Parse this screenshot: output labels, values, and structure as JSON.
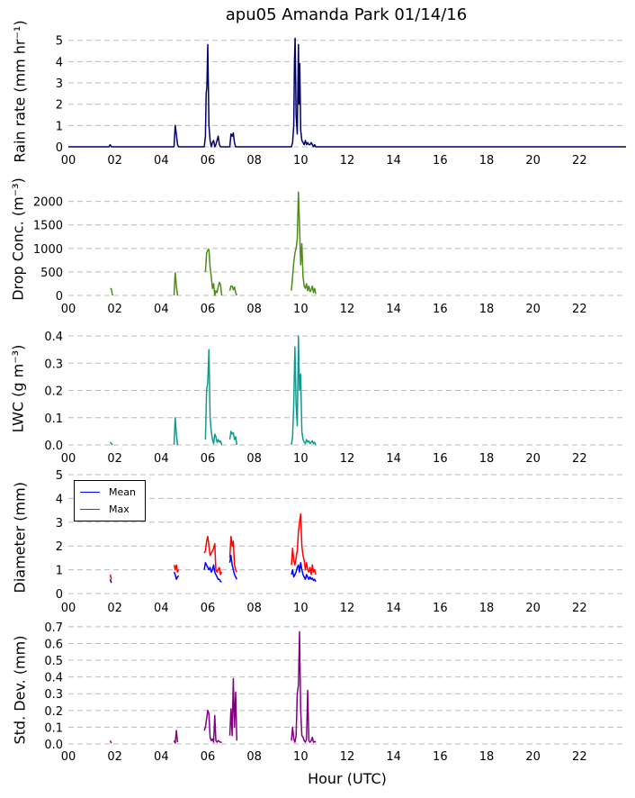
{
  "title": "apu05 Amanda Park 01/14/16",
  "xlabel": "Hour (UTC)",
  "x_tick_labels": [
    "00",
    "02",
    "04",
    "06",
    "08",
    "10",
    "12",
    "14",
    "16",
    "18",
    "20",
    "22"
  ],
  "chart_data": [
    {
      "type": "line",
      "ylabel": "Rain rate (mm hr⁻¹)",
      "xlim": [
        0,
        24
      ],
      "ylim": [
        0,
        5.2
      ],
      "y_ticks": [
        0,
        1,
        2,
        3,
        4,
        5
      ],
      "y_tick_labels": [
        "0",
        "1",
        "2",
        "3",
        "4",
        "5"
      ],
      "grid": true,
      "series": [
        {
          "color": "#000066",
          "x": [
            0,
            1.75,
            1.8,
            1.85,
            4.55,
            4.6,
            4.65,
            4.7,
            4.75,
            5.85,
            5.9,
            5.93,
            5.96,
            6.0,
            6.05,
            6.1,
            6.15,
            6.2,
            6.25,
            6.3,
            6.35,
            6.4,
            6.45,
            6.5,
            6.55,
            6.6,
            6.95,
            7.0,
            7.05,
            7.1,
            7.15,
            7.2,
            9.6,
            9.65,
            9.7,
            9.73,
            9.76,
            9.8,
            9.85,
            9.9,
            9.93,
            9.96,
            10.0,
            10.05,
            10.1,
            10.15,
            10.2,
            10.25,
            10.3,
            10.35,
            10.4,
            10.45,
            10.5,
            10.55,
            10.6,
            10.65,
            10.7,
            24
          ],
          "y": [
            0,
            0,
            0.1,
            0,
            0,
            1.0,
            0.6,
            0.1,
            0,
            0,
            0.5,
            2.5,
            2.8,
            4.8,
            1.0,
            0.3,
            0,
            0.2,
            0.3,
            0,
            0.1,
            0.3,
            0.5,
            0.1,
            0,
            0,
            0,
            0.6,
            0.5,
            0.65,
            0.2,
            0,
            0,
            0.2,
            1.0,
            4.0,
            5.1,
            1.5,
            0.6,
            4.8,
            2.0,
            3.9,
            0.8,
            0.3,
            0.2,
            0.1,
            0.3,
            0.1,
            0.2,
            0.1,
            0.1,
            0.2,
            0.1,
            0,
            0.1,
            0,
            0,
            0
          ]
        }
      ]
    },
    {
      "type": "line",
      "ylabel": "Drop Conc. (m⁻³)",
      "xlim": [
        0,
        24
      ],
      "ylim": [
        0,
        2300
      ],
      "y_ticks": [
        0,
        500,
        1000,
        1500,
        2000
      ],
      "y_tick_labels": [
        "0",
        "500",
        "1000",
        "1500",
        "2000"
      ],
      "grid": true,
      "series": [
        {
          "color": "#4d8b1a",
          "x": [
            1.8,
            1.85,
            1.9
          ],
          "y": [
            150,
            140,
            0
          ]
        },
        {
          "color": "#4d8b1a",
          "x": [
            4.55,
            4.6,
            4.65,
            4.7
          ],
          "y": [
            0,
            480,
            200,
            0
          ]
        },
        {
          "color": "#4d8b1a",
          "x": [
            5.9,
            5.95,
            6.0,
            6.05,
            6.1,
            6.15,
            6.2,
            6.25,
            6.3,
            6.35,
            6.4,
            6.45,
            6.5,
            6.55,
            6.6
          ],
          "y": [
            500,
            900,
            960,
            980,
            600,
            400,
            150,
            250,
            0,
            100,
            60,
            180,
            280,
            230,
            0
          ]
        },
        {
          "color": "#4d8b1a",
          "x": [
            6.95,
            7.0,
            7.05,
            7.1,
            7.15,
            7.2,
            7.25
          ],
          "y": [
            100,
            200,
            200,
            120,
            180,
            60,
            0
          ]
        },
        {
          "color": "#4d8b1a",
          "x": [
            9.6,
            9.65,
            9.7,
            9.75,
            9.8,
            9.85,
            9.9,
            9.95,
            10.0,
            10.05,
            10.1,
            10.15,
            10.2,
            10.25,
            10.3,
            10.35,
            10.4,
            10.45,
            10.5,
            10.55,
            10.6,
            10.65
          ],
          "y": [
            100,
            400,
            700,
            900,
            1000,
            1200,
            2200,
            1500,
            650,
            1100,
            400,
            200,
            150,
            250,
            100,
            200,
            80,
            120,
            200,
            60,
            150,
            30
          ]
        }
      ]
    },
    {
      "type": "line",
      "ylabel": "LWC (g m⁻³)",
      "xlim": [
        0,
        24
      ],
      "ylim": [
        0,
        0.41
      ],
      "y_ticks": [
        0,
        0.1,
        0.2,
        0.3,
        0.4
      ],
      "y_tick_labels": [
        "0.0",
        "0.1",
        "0.2",
        "0.3",
        "0.4"
      ],
      "grid": true,
      "series": [
        {
          "color": "#119990",
          "x": [
            1.8,
            1.85,
            1.9
          ],
          "y": [
            0.01,
            0.005,
            0
          ]
        },
        {
          "color": "#119990",
          "x": [
            4.55,
            4.6,
            4.65,
            4.7
          ],
          "y": [
            0,
            0.1,
            0.04,
            0
          ]
        },
        {
          "color": "#119990",
          "x": [
            5.9,
            5.95,
            6.0,
            6.05,
            6.1,
            6.15,
            6.2,
            6.25,
            6.3,
            6.35,
            6.4,
            6.45,
            6.5,
            6.55,
            6.6
          ],
          "y": [
            0.02,
            0.2,
            0.23,
            0.35,
            0.1,
            0.05,
            0.02,
            0.005,
            0.04,
            0.03,
            0.01,
            0.02,
            0.01,
            0.015,
            0
          ]
        },
        {
          "color": "#119990",
          "x": [
            6.95,
            7.0,
            7.05,
            7.1,
            7.15,
            7.2,
            7.25
          ],
          "y": [
            0.02,
            0.05,
            0.04,
            0.045,
            0.02,
            0.03,
            0
          ]
        },
        {
          "color": "#119990",
          "x": [
            9.6,
            9.65,
            9.7,
            9.75,
            9.8,
            9.85,
            9.9,
            9.95,
            10.0,
            10.05,
            10.1,
            10.15,
            10.2,
            10.25,
            10.3,
            10.35,
            10.4,
            10.45,
            10.5,
            10.55,
            10.6,
            10.65
          ],
          "y": [
            0,
            0.03,
            0.15,
            0.36,
            0.15,
            0.07,
            0.4,
            0.2,
            0.26,
            0.05,
            0.02,
            0.01,
            0.005,
            0.02,
            0.01,
            0.015,
            0.005,
            0.01,
            0.015,
            0.005,
            0.01,
            0
          ]
        }
      ]
    },
    {
      "type": "line",
      "ylabel": "Diameter (mm)",
      "xlim": [
        0,
        24
      ],
      "ylim": [
        0,
        5
      ],
      "y_ticks": [
        0,
        1,
        2,
        3,
        4,
        5
      ],
      "y_tick_labels": [
        "0",
        "1",
        "2",
        "3",
        "4",
        "5"
      ],
      "grid": true,
      "legend_position": "upper-left",
      "series": [
        {
          "name": "Max",
          "color": "#ff0000",
          "segments": [
            {
              "x": [
                1.8,
                1.85
              ],
              "y": [
                0.8,
                0.6
              ]
            },
            {
              "x": [
                4.55,
                4.6,
                4.65,
                4.7,
                4.75
              ],
              "y": [
                1.2,
                1.0,
                1.2,
                0.9,
                1.0
              ]
            },
            {
              "x": [
                5.85,
                5.9,
                5.95,
                6.0,
                6.05,
                6.1,
                6.15,
                6.2,
                6.25,
                6.3,
                6.35,
                6.4,
                6.45,
                6.5,
                6.55,
                6.6
              ],
              "y": [
                1.7,
                1.8,
                2.2,
                2.4,
                2.0,
                1.6,
                1.7,
                1.8,
                1.9,
                2.1,
                1.0,
                0.9,
                1.0,
                1.1,
                0.8,
                0.9
              ]
            },
            {
              "x": [
                6.95,
                7.0,
                7.05,
                7.1,
                7.15,
                7.2,
                7.25
              ],
              "y": [
                1.5,
                2.4,
                2.0,
                2.2,
                1.2,
                1.0,
                0.9
              ]
            },
            {
              "x": [
                9.6,
                9.65,
                9.7,
                9.75,
                9.8,
                9.85,
                9.9,
                9.95,
                10.0,
                10.05,
                10.1,
                10.15,
                10.2,
                10.25,
                10.3,
                10.35,
                10.4,
                10.45,
                10.5,
                10.55,
                10.6,
                10.65
              ],
              "y": [
                1.2,
                1.9,
                1.4,
                1.2,
                1.5,
                1.8,
                2.6,
                3.0,
                3.35,
                2.0,
                1.6,
                1.4,
                1.0,
                1.3,
                1.0,
                0.9,
                1.1,
                0.8,
                1.2,
                0.9,
                1.0,
                0.8
              ]
            }
          ]
        },
        {
          "name": "Mean",
          "color": "#0000ff",
          "segments": [
            {
              "x": [
                1.8,
                1.85
              ],
              "y": [
                0.6,
                0.45
              ]
            },
            {
              "x": [
                4.55,
                4.6,
                4.65,
                4.7,
                4.75
              ],
              "y": [
                0.9,
                0.8,
                0.6,
                0.7,
                0.75
              ]
            },
            {
              "x": [
                5.85,
                5.9,
                5.95,
                6.0,
                6.05,
                6.1,
                6.15,
                6.2,
                6.25,
                6.3,
                6.35,
                6.4,
                6.45,
                6.5,
                6.55,
                6.6
              ],
              "y": [
                1.0,
                1.3,
                1.2,
                1.1,
                1.0,
                1.1,
                0.9,
                1.0,
                1.2,
                0.9,
                0.8,
                0.7,
                0.6,
                0.6,
                0.5,
                0.5
              ]
            },
            {
              "x": [
                6.95,
                7.0,
                7.05,
                7.1,
                7.15,
                7.2,
                7.25
              ],
              "y": [
                1.3,
                1.6,
                1.2,
                1.0,
                0.8,
                0.7,
                0.6
              ]
            },
            {
              "x": [
                9.6,
                9.65,
                9.7,
                9.75,
                9.8,
                9.85,
                9.9,
                9.95,
                10.0,
                10.05,
                10.1,
                10.15,
                10.2,
                10.25,
                10.3,
                10.35,
                10.4,
                10.45,
                10.5,
                10.55,
                10.6,
                10.65
              ],
              "y": [
                0.8,
                1.0,
                0.7,
                0.8,
                0.9,
                1.1,
                1.2,
                0.9,
                1.3,
                1.0,
                0.8,
                0.7,
                0.6,
                0.8,
                0.7,
                0.6,
                0.7,
                0.6,
                0.65,
                0.55,
                0.6,
                0.5
              ]
            }
          ]
        }
      ],
      "legend": [
        {
          "label": "Mean",
          "color": "#0000ff"
        },
        {
          "label": "Max",
          "color": "#ff0000"
        }
      ]
    },
    {
      "type": "line",
      "ylabel": "Std. Dev. (mm)",
      "xlim": [
        0,
        24
      ],
      "ylim": [
        0,
        0.71
      ],
      "y_ticks": [
        0,
        0.1,
        0.2,
        0.3,
        0.4,
        0.5,
        0.6,
        0.7
      ],
      "y_tick_labels": [
        "0.0",
        "0.1",
        "0.2",
        "0.3",
        "0.4",
        "0.5",
        "0.6",
        "0.7"
      ],
      "grid": true,
      "series": [
        {
          "color": "#800080",
          "segments": [
            {
              "x": [
                1.8,
                1.85
              ],
              "y": [
                0.02,
                0.005
              ]
            },
            {
              "x": [
                4.55,
                4.6,
                4.65,
                4.7
              ],
              "y": [
                0.02,
                0.005,
                0.08,
                0.01
              ]
            },
            {
              "x": [
                5.85,
                5.9,
                5.95,
                6.0,
                6.05,
                6.1,
                6.15,
                6.2,
                6.25,
                6.3,
                6.35,
                6.4,
                6.45,
                6.5,
                6.55,
                6.6
              ],
              "y": [
                0.08,
                0.1,
                0.15,
                0.2,
                0.18,
                0.04,
                0.02,
                0.03,
                0.01,
                0.17,
                0.02,
                0.01,
                0.02,
                0.015,
                0.01,
                0.01
              ]
            },
            {
              "x": [
                6.95,
                7.0,
                7.05,
                7.1,
                7.15,
                7.2,
                7.25
              ],
              "y": [
                0.05,
                0.21,
                0.05,
                0.39,
                0.1,
                0.31,
                0.02
              ]
            },
            {
              "x": [
                9.6,
                9.65,
                9.7,
                9.75,
                9.8,
                9.85,
                9.9,
                9.95,
                10.0,
                10.05,
                10.1,
                10.15,
                10.2,
                10.25,
                10.3,
                10.35,
                10.4,
                10.45,
                10.5,
                10.55,
                10.6,
                10.65
              ],
              "y": [
                0.02,
                0.1,
                0.03,
                0.01,
                0.05,
                0.3,
                0.35,
                0.67,
                0.2,
                0.05,
                0.04,
                0.02,
                0.01,
                0.03,
                0.32,
                0.02,
                0.01,
                0.02,
                0.04,
                0.01,
                0.015,
                0.01
              ]
            }
          ]
        }
      ]
    }
  ]
}
